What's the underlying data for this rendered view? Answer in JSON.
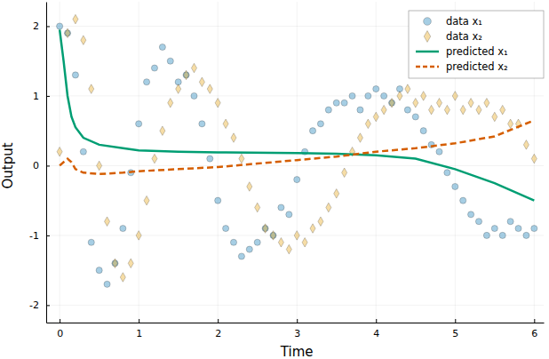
{
  "chart_data": {
    "type": "scatter",
    "xlabel": "Time",
    "ylabel": "Output",
    "xlim": [
      -0.17,
      6.12
    ],
    "ylim": [
      -2.25,
      2.35
    ],
    "xticks": [
      0,
      1,
      2,
      3,
      4,
      5,
      6
    ],
    "yticks": [
      -2,
      -1,
      0,
      1,
      2
    ],
    "grid": true,
    "legend": "top-right",
    "series": [
      {
        "name": "data x₁",
        "type": "scatter",
        "marker": "circle",
        "color": "#0072b2",
        "x": [
          0.0,
          0.1,
          0.2,
          0.3,
          0.4,
          0.5,
          0.6,
          0.7,
          0.8,
          0.9,
          1.0,
          1.1,
          1.2,
          1.3,
          1.4,
          1.5,
          1.6,
          1.7,
          1.8,
          1.9,
          2.0,
          2.1,
          2.2,
          2.3,
          2.4,
          2.5,
          2.6,
          2.7,
          2.8,
          2.9,
          3.0,
          3.1,
          3.2,
          3.3,
          3.4,
          3.5,
          3.6,
          3.7,
          3.8,
          3.9,
          4.0,
          4.1,
          4.2,
          4.3,
          4.4,
          4.5,
          4.6,
          4.7,
          4.8,
          4.9,
          5.0,
          5.1,
          5.2,
          5.3,
          5.4,
          5.5,
          5.6,
          5.7,
          5.8,
          5.9,
          6.0
        ],
        "values": [
          2.0,
          1.9,
          1.3,
          0.2,
          -1.1,
          -1.5,
          -1.7,
          -1.4,
          -0.9,
          -0.1,
          0.6,
          1.2,
          1.4,
          1.7,
          1.5,
          1.2,
          1.3,
          1.0,
          0.6,
          0.1,
          -0.5,
          -0.9,
          -1.1,
          -1.3,
          -1.2,
          -1.1,
          -0.9,
          -1.0,
          -0.6,
          -0.7,
          -0.2,
          0.2,
          0.5,
          0.6,
          0.8,
          0.9,
          0.9,
          1.0,
          0.8,
          1.0,
          1.1,
          1.0,
          0.9,
          1.1,
          0.8,
          0.7,
          0.5,
          0.3,
          0.2,
          -0.1,
          -0.3,
          -0.5,
          -0.7,
          -0.8,
          -1.0,
          -0.9,
          -1.0,
          -0.8,
          -0.9,
          -1.0,
          -0.9
        ]
      },
      {
        "name": "data x₂",
        "type": "scatter",
        "marker": "diamond",
        "color": "#e69f00",
        "x": [
          0.0,
          0.1,
          0.2,
          0.3,
          0.4,
          0.5,
          0.6,
          0.7,
          0.8,
          0.9,
          1.0,
          1.1,
          1.2,
          1.3,
          1.4,
          1.5,
          1.6,
          1.7,
          1.8,
          1.9,
          2.0,
          2.1,
          2.2,
          2.3,
          2.4,
          2.5,
          2.6,
          2.7,
          2.8,
          2.9,
          3.0,
          3.1,
          3.2,
          3.3,
          3.4,
          3.5,
          3.6,
          3.7,
          3.8,
          3.9,
          4.0,
          4.1,
          4.2,
          4.3,
          4.4,
          4.5,
          4.6,
          4.7,
          4.8,
          4.9,
          5.0,
          5.1,
          5.2,
          5.3,
          5.4,
          5.5,
          5.6,
          5.7,
          5.8,
          5.9,
          6.0
        ],
        "values": [
          0.2,
          1.9,
          2.1,
          1.8,
          1.1,
          0.0,
          -0.8,
          -1.4,
          -1.6,
          -1.4,
          -1.0,
          -0.5,
          0.1,
          0.5,
          0.9,
          1.1,
          1.3,
          1.4,
          1.2,
          1.1,
          0.9,
          0.6,
          0.4,
          0.1,
          -0.3,
          -0.6,
          -0.9,
          -1.0,
          -1.1,
          -1.2,
          -1.0,
          -1.1,
          -0.9,
          -0.8,
          -0.6,
          -0.4,
          -0.1,
          0.2,
          0.4,
          0.6,
          0.7,
          0.8,
          0.9,
          1.0,
          1.1,
          0.9,
          1.0,
          0.8,
          0.9,
          0.8,
          1.0,
          0.8,
          0.9,
          0.8,
          0.9,
          0.7,
          0.8,
          0.6,
          0.6,
          0.3,
          0.1
        ]
      },
      {
        "name": "predicted x₁",
        "type": "line",
        "line_style": "solid",
        "color": "#009e73",
        "x": [
          0.0,
          0.05,
          0.1,
          0.15,
          0.2,
          0.3,
          0.5,
          0.8,
          1.0,
          1.5,
          2.0,
          3.0,
          3.5,
          4.0,
          4.5,
          5.0,
          5.5,
          6.0
        ],
        "values": [
          1.95,
          1.5,
          1.0,
          0.7,
          0.55,
          0.4,
          0.3,
          0.25,
          0.22,
          0.2,
          0.19,
          0.18,
          0.17,
          0.15,
          0.1,
          -0.05,
          -0.25,
          -0.5
        ]
      },
      {
        "name": "predicted x₂",
        "type": "line",
        "line_style": "dashed",
        "color": "#d55e00",
        "x": [
          0.0,
          0.1,
          0.15,
          0.2,
          0.3,
          0.5,
          0.8,
          1.0,
          1.5,
          2.0,
          2.5,
          3.0,
          3.5,
          4.0,
          4.5,
          5.0,
          5.5,
          6.0
        ],
        "values": [
          0.0,
          0.1,
          0.05,
          -0.05,
          -0.1,
          -0.12,
          -0.1,
          -0.08,
          -0.05,
          -0.02,
          0.03,
          0.08,
          0.13,
          0.2,
          0.25,
          0.32,
          0.42,
          0.65
        ]
      }
    ]
  }
}
